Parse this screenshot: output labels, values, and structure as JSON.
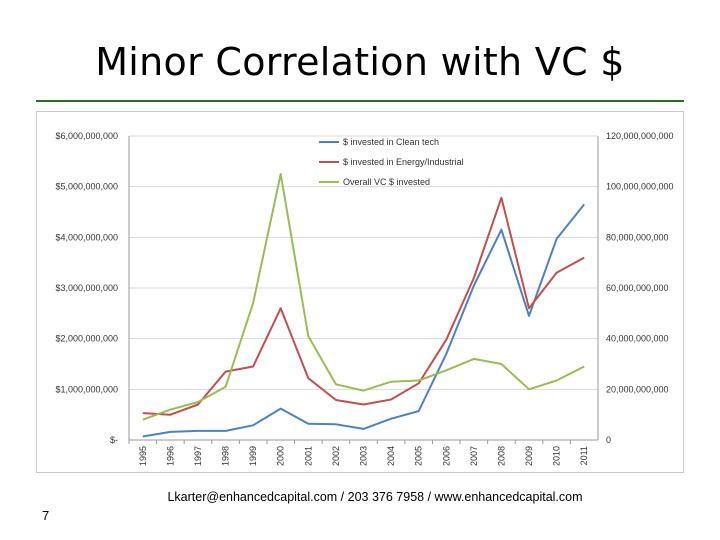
{
  "slide": {
    "title": "Minor Correlation with VC $",
    "footer": "Lkarter@enhancedcapital.com  / 203 376 7958  / www.enhancedcapital.com",
    "page_number": "7"
  },
  "colors": {
    "rule": "#2f6b2f",
    "clean_tech": "#4f81bd",
    "energy": "#c0504d",
    "overall": "#9bbb59"
  },
  "chart_data": {
    "type": "line",
    "title": "",
    "xlabel": "",
    "ylabel": "",
    "x": [
      "1995",
      "1996",
      "1997",
      "1998",
      "1999",
      "2000",
      "2001",
      "2002",
      "2003",
      "2004",
      "2005",
      "2006",
      "2007",
      "2008",
      "2009",
      "2010",
      "2011"
    ],
    "ylim_left": [
      0,
      6000000000
    ],
    "ylim_right": [
      0,
      120000000000
    ],
    "left_ticks": [
      "$-",
      "$1,000,000,000",
      "$2,000,000,000",
      "$3,000,000,000",
      "$4,000,000,000",
      "$5,000,000,000",
      "$6,000,000,000"
    ],
    "right_ticks": [
      "0",
      "20,000,000,000",
      "40,000,000,000",
      "60,000,000,000",
      "80,000,000,000",
      "100,000,000,000",
      "120,000,000,000"
    ],
    "grid": true,
    "legend": "top-right",
    "series": [
      {
        "name": "$ invested in Clean tech",
        "axis": "left",
        "values": [
          70000000,
          160000000,
          180000000,
          180000000,
          290000000,
          620000000,
          320000000,
          310000000,
          220000000,
          420000000,
          570000000,
          1700000000,
          3050000000,
          4150000000,
          2450000000,
          3970000000,
          4650000000
        ]
      },
      {
        "name": "$ invested in Energy/Industrial",
        "axis": "left",
        "values": [
          530000000,
          500000000,
          700000000,
          1350000000,
          1450000000,
          2600000000,
          1220000000,
          790000000,
          700000000,
          800000000,
          1120000000,
          1980000000,
          3200000000,
          4780000000,
          2600000000,
          3300000000,
          3600000000
        ]
      },
      {
        "name": "Overall VC $ invested",
        "axis": "right",
        "values": [
          8000000000,
          12000000000,
          15000000000,
          21000000000,
          54000000000,
          105000000000,
          41000000000,
          22000000000,
          19500000000,
          23000000000,
          23500000000,
          27500000000,
          32000000000,
          30000000000,
          20000000000,
          23500000000,
          29000000000
        ]
      }
    ]
  }
}
